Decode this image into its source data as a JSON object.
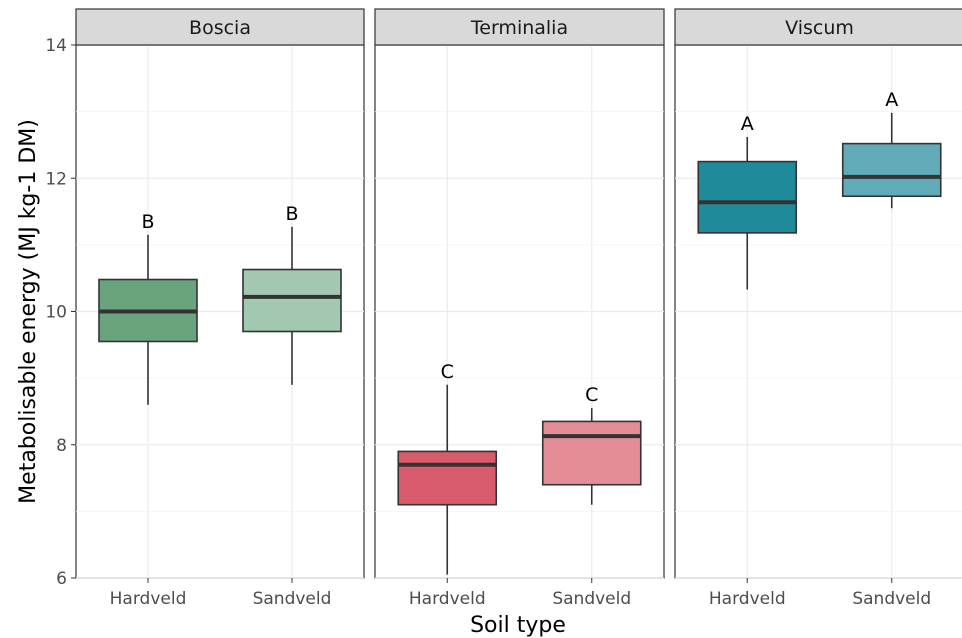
{
  "chart_data": {
    "type": "box",
    "xlabel": "Soil type",
    "ylabel": "Metabolisable energy (MJ kg-1 DM)",
    "ylim": [
      6,
      14
    ],
    "yticks": [
      6,
      8,
      10,
      12,
      14
    ],
    "grid": true,
    "categories": [
      "Hardveld",
      "Sandveld"
    ],
    "panels": [
      {
        "name": "Boscia",
        "boxes": [
          {
            "category": "Hardveld",
            "min": 8.6,
            "q1": 9.55,
            "median": 10.0,
            "q3": 10.48,
            "max": 11.15,
            "label": "B",
            "color": "#6aa47e"
          },
          {
            "category": "Sandveld",
            "min": 8.9,
            "q1": 9.7,
            "median": 10.22,
            "q3": 10.63,
            "max": 11.27,
            "label": "B",
            "color": "#a2c9b0"
          }
        ]
      },
      {
        "name": "Terminalia",
        "boxes": [
          {
            "category": "Hardveld",
            "min": 6.05,
            "q1": 7.1,
            "median": 7.7,
            "q3": 7.9,
            "max": 8.9,
            "label": "C",
            "color": "#d75b6b"
          },
          {
            "category": "Sandveld",
            "min": 7.1,
            "q1": 7.4,
            "median": 8.13,
            "q3": 8.35,
            "max": 8.55,
            "label": "C",
            "color": "#e48d99"
          }
        ]
      },
      {
        "name": "Viscum",
        "boxes": [
          {
            "category": "Hardveld",
            "min": 10.33,
            "q1": 11.18,
            "median": 11.64,
            "q3": 12.25,
            "max": 12.62,
            "label": "A",
            "color": "#1f8a9a"
          },
          {
            "category": "Sandveld",
            "min": 11.55,
            "q1": 11.73,
            "median": 12.02,
            "q3": 12.52,
            "max": 12.98,
            "label": "A",
            "color": "#61abb8"
          }
        ]
      }
    ]
  }
}
